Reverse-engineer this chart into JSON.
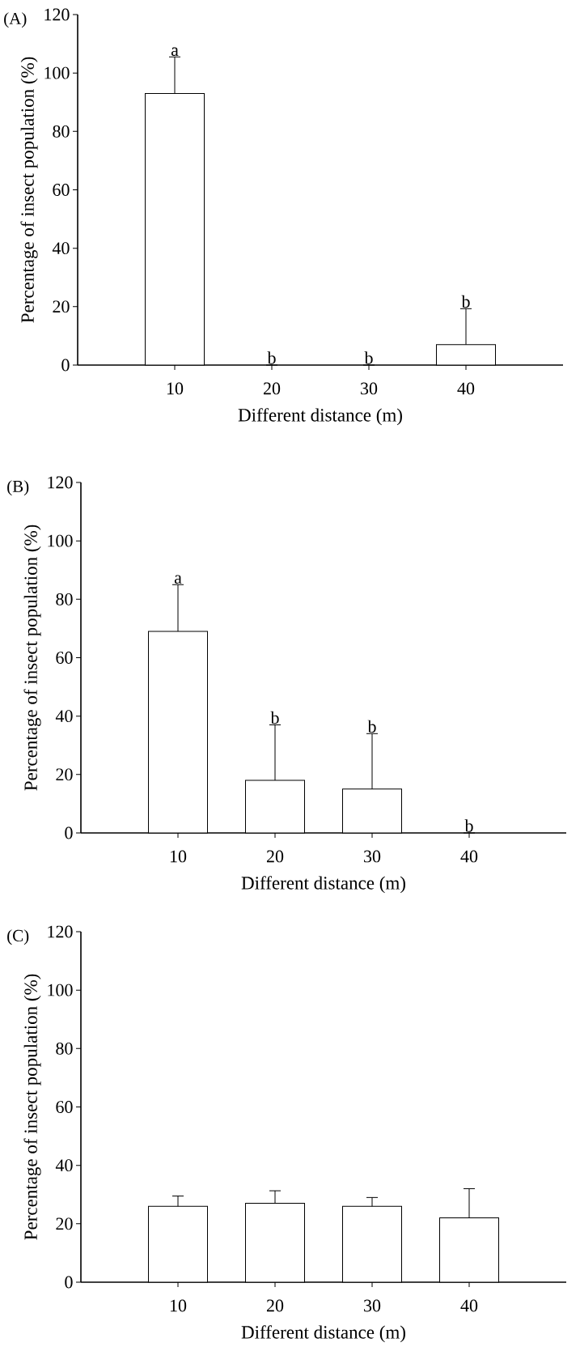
{
  "chart_data": [
    {
      "type": "bar",
      "title": "(A)",
      "xlabel": "Different  distance (m)",
      "ylabel": "Percentage of insect population (%)",
      "categories": [
        "10",
        "20",
        "30",
        "40"
      ],
      "values": [
        93,
        0,
        0,
        7
      ],
      "errors": [
        12.5,
        0,
        0,
        12.3
      ],
      "color": "#ffffff",
      "ylim": [
        0,
        120
      ],
      "yticks": [
        0,
        20,
        40,
        60,
        80,
        100,
        120
      ],
      "annotations": [
        {
          "text": "a",
          "x": "10",
          "y": 105.5
        },
        {
          "text": "b",
          "x": "20",
          "y": 0
        },
        {
          "text": "b",
          "x": "30",
          "y": 0
        },
        {
          "text": "b",
          "x": "40",
          "y": 19.3
        }
      ]
    },
    {
      "type": "bar",
      "title": "(B)",
      "xlabel": "Different  distance (m)",
      "ylabel": "Percentage of insect population (%)",
      "categories": [
        "10",
        "20",
        "30",
        "40"
      ],
      "values": [
        69,
        18,
        15,
        0
      ],
      "errors": [
        16,
        19,
        19,
        0
      ],
      "color": "#ffffff",
      "ylim": [
        0,
        120
      ],
      "yticks": [
        0,
        20,
        40,
        60,
        80,
        100,
        120
      ],
      "annotations": [
        {
          "text": "a",
          "x": "10",
          "y": 85
        },
        {
          "text": "b",
          "x": "20",
          "y": 37
        },
        {
          "text": "b",
          "x": "30",
          "y": 34
        },
        {
          "text": "b",
          "x": "40",
          "y": 0
        }
      ]
    },
    {
      "type": "bar",
      "title": "(C)",
      "xlabel": "Different  distance (m)",
      "ylabel": "Percentage of insect population (%)",
      "categories": [
        "10",
        "20",
        "30",
        "40"
      ],
      "values": [
        26,
        27,
        26,
        22
      ],
      "errors": [
        3.5,
        4.3,
        3,
        10
      ],
      "color": "#ffffff",
      "ylim": [
        0,
        120
      ],
      "yticks": [
        0,
        20,
        40,
        60,
        80,
        100,
        120
      ]
    }
  ]
}
